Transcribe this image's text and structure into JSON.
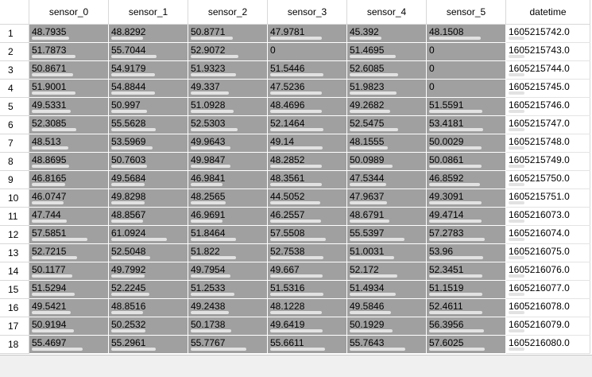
{
  "table": {
    "columns": [
      "sensor_0",
      "sensor_1",
      "sensor_2",
      "sensor_3",
      "sensor_4",
      "sensor_5",
      "datetime"
    ],
    "row_labels": [
      "1",
      "2",
      "3",
      "4",
      "5",
      "6",
      "7",
      "8",
      "9",
      "10",
      "11",
      "12",
      "13",
      "14",
      "15",
      "16",
      "17",
      "18"
    ],
    "rows": [
      [
        "48.7935",
        "48.8292",
        "50.8771",
        "47.9781",
        "45.392",
        "48.1508",
        "1605215742.0"
      ],
      [
        "51.7873",
        "55.7044",
        "52.9072",
        "0",
        "51.4695",
        "0",
        "1605215743.0"
      ],
      [
        "50.8671",
        "54.9179",
        "51.9323",
        "51.5446",
        "52.6085",
        "0",
        "1605215744.0"
      ],
      [
        "51.9001",
        "54.8844",
        "49.337",
        "47.5236",
        "51.9823",
        "0",
        "1605215745.0"
      ],
      [
        "49.5331",
        "50.997",
        "51.0928",
        "48.4696",
        "49.2682",
        "51.5591",
        "1605215746.0"
      ],
      [
        "52.3085",
        "55.5628",
        "52.5303",
        "52.1464",
        "52.5475",
        "53.4181",
        "1605215747.0"
      ],
      [
        "48.513",
        "53.5969",
        "49.9643",
        "49.14",
        "48.1555",
        "50.0029",
        "1605215748.0"
      ],
      [
        "48.8695",
        "50.7603",
        "49.9847",
        "48.2852",
        "50.0989",
        "50.0861",
        "1605215749.0"
      ],
      [
        "46.8165",
        "49.5684",
        "46.9841",
        "48.3561",
        "47.5344",
        "46.8592",
        "1605215750.0"
      ],
      [
        "46.0747",
        "49.8298",
        "48.2565",
        "44.5052",
        "47.9637",
        "49.3091",
        "1605215751.0"
      ],
      [
        "47.744",
        "48.8567",
        "46.9691",
        "46.2557",
        "48.6791",
        "49.4714",
        "1605216073.0"
      ],
      [
        "57.5851",
        "61.0924",
        "51.8464",
        "57.5508",
        "55.5397",
        "57.2783",
        "1605216074.0"
      ],
      [
        "52.7215",
        "52.5048",
        "51.822",
        "52.7538",
        "51.0031",
        "53.96",
        "1605216075.0"
      ],
      [
        "50.1177",
        "49.7992",
        "49.7954",
        "49.667",
        "52.172",
        "52.3451",
        "1605216076.0"
      ],
      [
        "51.5294",
        "52.2245",
        "51.2533",
        "51.5316",
        "51.4934",
        "51.1519",
        "1605216077.0"
      ],
      [
        "49.5421",
        "48.8516",
        "49.2438",
        "48.1228",
        "49.5846",
        "52.4611",
        "1605216078.0"
      ],
      [
        "50.9194",
        "50.2532",
        "50.1738",
        "49.6419",
        "50.1929",
        "56.3956",
        "1605216079.0"
      ],
      [
        "55.4697",
        "55.2961",
        "55.7767",
        "55.6611",
        "55.7643",
        "57.6025",
        "1605216080.0"
      ]
    ]
  }
}
